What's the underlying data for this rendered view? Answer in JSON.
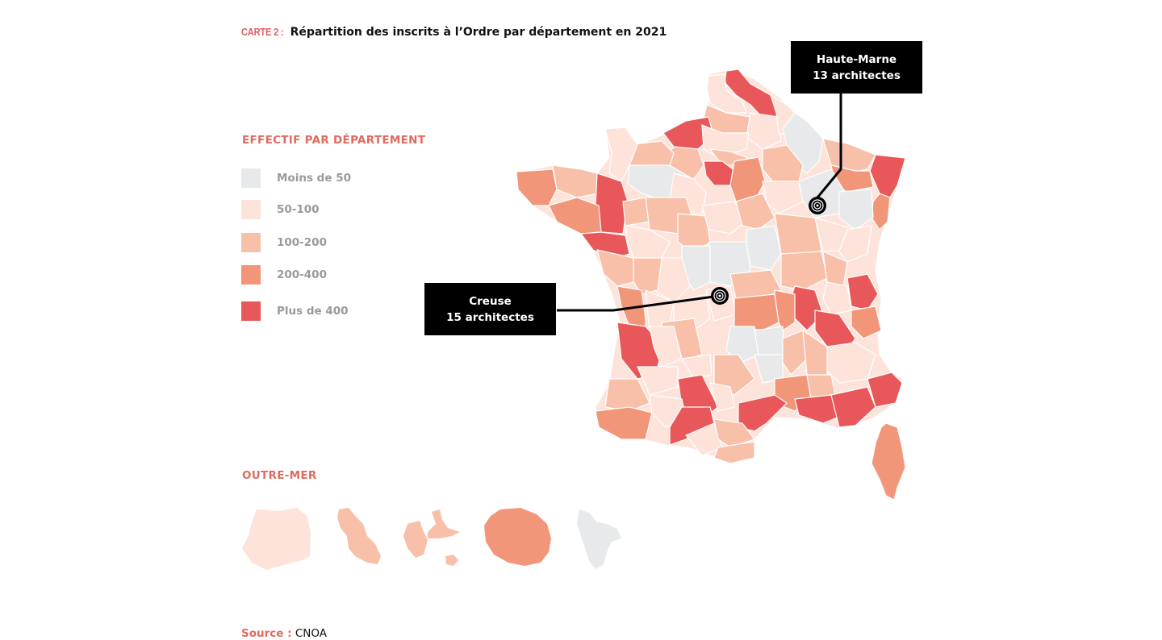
{
  "title": {
    "prefix": "CARTE 2 :",
    "text": "Répartition des inscrits à l’Ordre par département en 2021"
  },
  "legend": {
    "heading": "EFFECTIF PAR DÉPARTEMENT",
    "items": [
      {
        "label": "Moins de 50",
        "color": "#e8e9ea"
      },
      {
        "label": "50-100",
        "color": "#fde3d9"
      },
      {
        "label": "100-200",
        "color": "#f8c0a8"
      },
      {
        "label": "200-400",
        "color": "#f2967a"
      },
      {
        "label": "Plus de 400",
        "color": "#e8585a"
      }
    ]
  },
  "callouts": {
    "haute_marne": {
      "name": "Haute-Marne",
      "value": "13 architectes"
    },
    "creuse": {
      "name": "Creuse",
      "value": "15 architectes"
    }
  },
  "outremer": {
    "heading": "OUTRE-MER",
    "territories": [
      {
        "icon": "guyane-shape",
        "class": "50-100"
      },
      {
        "icon": "martinique-shape",
        "class": "100-200"
      },
      {
        "icon": "guadeloupe-shape",
        "class": "100-200"
      },
      {
        "icon": "reunion-shape",
        "class": "200-400"
      },
      {
        "icon": "mayotte-shape",
        "class": "Moins de 50"
      }
    ]
  },
  "source": {
    "label": "Source :",
    "value": "CNOA"
  }
}
